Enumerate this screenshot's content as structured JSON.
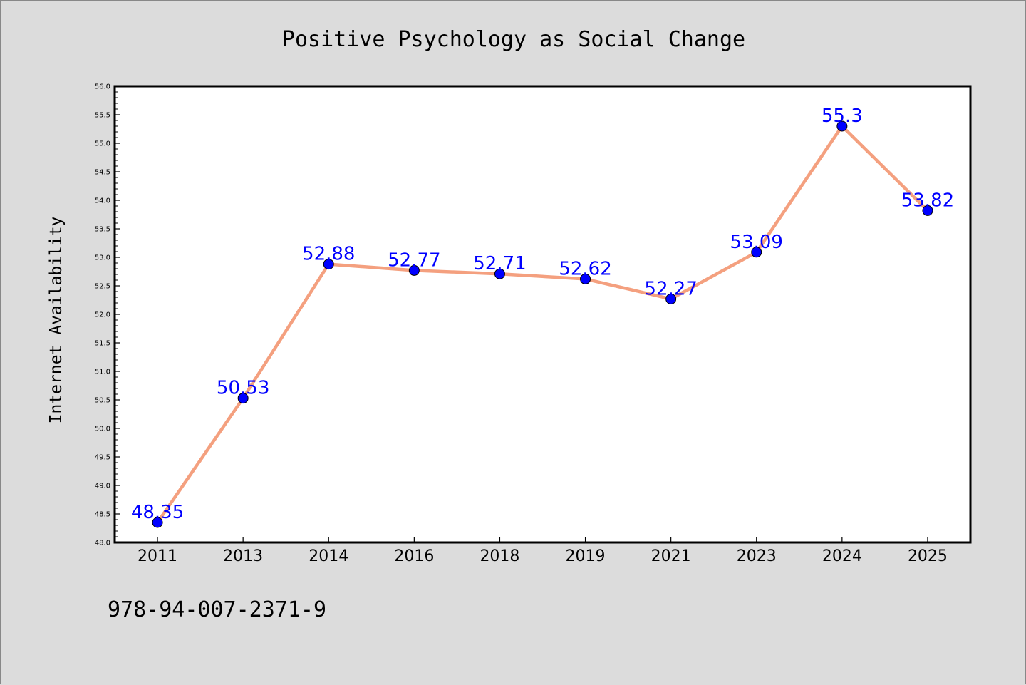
{
  "chart_data": {
    "type": "line",
    "title": "Positive Psychology as Social Change",
    "xlabel": "",
    "ylabel": "Internet Availability",
    "categories": [
      "2011",
      "2013",
      "2014",
      "2016",
      "2018",
      "2019",
      "2021",
      "2023",
      "2024",
      "2025"
    ],
    "series": [
      {
        "values": [
          48.35,
          50.53,
          52.88,
          52.77,
          52.71,
          52.62,
          52.27,
          53.09,
          55.3,
          53.82
        ],
        "data_labels": [
          "48.35",
          "50.53",
          "52.88",
          "52.77",
          "52.71",
          "52.62",
          "52.27",
          "53.09",
          "55.3",
          "53.82"
        ],
        "line_color": "#f4a07f",
        "marker_color": "#0000ff"
      }
    ],
    "ylim": [
      48.0,
      56.0
    ],
    "yticks": [
      "48.0",
      "48.5",
      "49.0",
      "49.5",
      "50.0",
      "50.5",
      "51.0",
      "51.5",
      "52.0",
      "52.5",
      "53.0",
      "53.5",
      "54.0",
      "54.5",
      "55.0",
      "55.5",
      "56.0"
    ],
    "grid": false,
    "legend": "none",
    "label_color": "#0000ff",
    "background": "#dcdcdc",
    "plot_background": "#ffffff"
  },
  "footer": {
    "isbn": "978-94-007-2371-9"
  }
}
